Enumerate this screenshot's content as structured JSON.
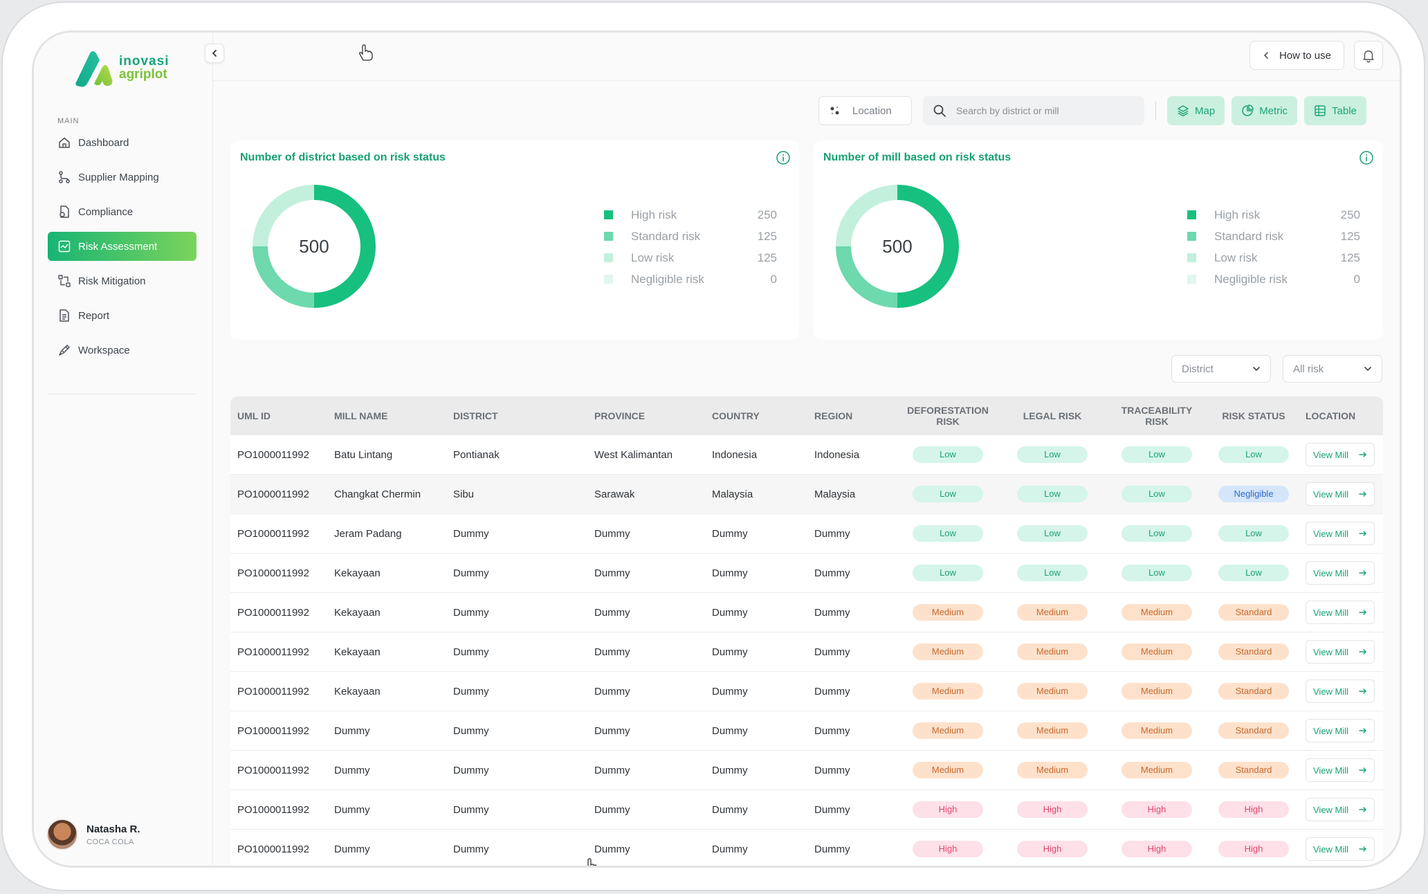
{
  "brand": {
    "line1": "inovasi",
    "line2": "agriplot"
  },
  "sidebar": {
    "section": "MAIN",
    "items": [
      {
        "label": "Dashboard",
        "icon": "home-icon"
      },
      {
        "label": "Supplier Mapping",
        "icon": "route-icon"
      },
      {
        "label": "Compliance",
        "icon": "document-check-icon"
      },
      {
        "label": "Risk Assessment",
        "icon": "chart-line-icon"
      },
      {
        "label": "Risk Mitigation",
        "icon": "arrows-swap-icon"
      },
      {
        "label": "Report",
        "icon": "report-icon"
      },
      {
        "label": "Workspace",
        "icon": "pen-tool-icon"
      }
    ],
    "active_index": 3
  },
  "user": {
    "name": "Natasha R.",
    "org": "COCA COLA"
  },
  "topbar": {
    "how_to_use": "How to use"
  },
  "toolbar": {
    "location": "Location",
    "search_placeholder": "Search by district or mill",
    "map": "Map",
    "metric": "Metric",
    "table": "Table"
  },
  "colors": {
    "high": "#17c07e",
    "standard": "#6dd9ad",
    "low": "#c2f0dc",
    "negligible": "#e2f6ee",
    "accent": "#16a070"
  },
  "cards": [
    {
      "title": "Number of district based on risk status",
      "total": "500",
      "legend": [
        {
          "label": "High risk",
          "value": 250
        },
        {
          "label": "Standard risk",
          "value": 125
        },
        {
          "label": "Low risk",
          "value": 125
        },
        {
          "label": "Negligible risk",
          "value": 0
        }
      ]
    },
    {
      "title": "Number of mill based on risk status",
      "total": "500",
      "legend": [
        {
          "label": "High risk",
          "value": 250
        },
        {
          "label": "Standard risk",
          "value": 125
        },
        {
          "label": "Low risk",
          "value": 125
        },
        {
          "label": "Negligible risk",
          "value": 0
        }
      ]
    }
  ],
  "filters": {
    "district": "District",
    "risk": "All risk"
  },
  "table": {
    "headers": [
      "UML ID",
      "MILL NAME",
      "DISTRICT",
      "PROVINCE",
      "COUNTRY",
      "REGION",
      "DEFORESTATION\nRISK",
      "LEGAL RISK",
      "TRACEABILITY\nRISK",
      "RISK STATUS",
      "LOCATION"
    ],
    "view_label": "View Mill",
    "rows": [
      {
        "id": "PO1000011992",
        "mill": "Batu Lintang",
        "district": "Pontianak",
        "province": "West Kalimantan",
        "country": "Indonesia",
        "region": "Indonesia",
        "defo": "Low",
        "legal": "Low",
        "trace": "Low",
        "status": "Low"
      },
      {
        "id": "PO1000011992",
        "mill": "Changkat Chermin",
        "district": "Sibu",
        "province": "Sarawak",
        "country": "Malaysia",
        "region": "Malaysia",
        "defo": "Low",
        "legal": "Low",
        "trace": "Low",
        "status": "Negligible"
      },
      {
        "id": "PO1000011992",
        "mill": "Jeram Padang",
        "district": "Dummy",
        "province": "Dummy",
        "country": "Dummy",
        "region": "Dummy",
        "defo": "Low",
        "legal": "Low",
        "trace": "Low",
        "status": "Low"
      },
      {
        "id": "PO1000011992",
        "mill": "Kekayaan",
        "district": "Dummy",
        "province": "Dummy",
        "country": "Dummy",
        "region": "Dummy",
        "defo": "Low",
        "legal": "Low",
        "trace": "Low",
        "status": "Low"
      },
      {
        "id": "PO1000011992",
        "mill": "Kekayaan",
        "district": "Dummy",
        "province": "Dummy",
        "country": "Dummy",
        "region": "Dummy",
        "defo": "Medium",
        "legal": "Medium",
        "trace": "Medium",
        "status": "Standard"
      },
      {
        "id": "PO1000011992",
        "mill": "Kekayaan",
        "district": "Dummy",
        "province": "Dummy",
        "country": "Dummy",
        "region": "Dummy",
        "defo": "Medium",
        "legal": "Medium",
        "trace": "Medium",
        "status": "Standard"
      },
      {
        "id": "PO1000011992",
        "mill": "Kekayaan",
        "district": "Dummy",
        "province": "Dummy",
        "country": "Dummy",
        "region": "Dummy",
        "defo": "Medium",
        "legal": "Medium",
        "trace": "Medium",
        "status": "Standard"
      },
      {
        "id": "PO1000011992",
        "mill": "Dummy",
        "district": "Dummy",
        "province": "Dummy",
        "country": "Dummy",
        "region": "Dummy",
        "defo": "Medium",
        "legal": "Medium",
        "trace": "Medium",
        "status": "Standard"
      },
      {
        "id": "PO1000011992",
        "mill": "Dummy",
        "district": "Dummy",
        "province": "Dummy",
        "country": "Dummy",
        "region": "Dummy",
        "defo": "Medium",
        "legal": "Medium",
        "trace": "Medium",
        "status": "Standard"
      },
      {
        "id": "PO1000011992",
        "mill": "Dummy",
        "district": "Dummy",
        "province": "Dummy",
        "country": "Dummy",
        "region": "Dummy",
        "defo": "High",
        "legal": "High",
        "trace": "High",
        "status": "High"
      },
      {
        "id": "PO1000011992",
        "mill": "Dummy",
        "district": "Dummy",
        "province": "Dummy",
        "country": "Dummy",
        "region": "Dummy",
        "defo": "High",
        "legal": "High",
        "trace": "High",
        "status": "High"
      }
    ]
  }
}
